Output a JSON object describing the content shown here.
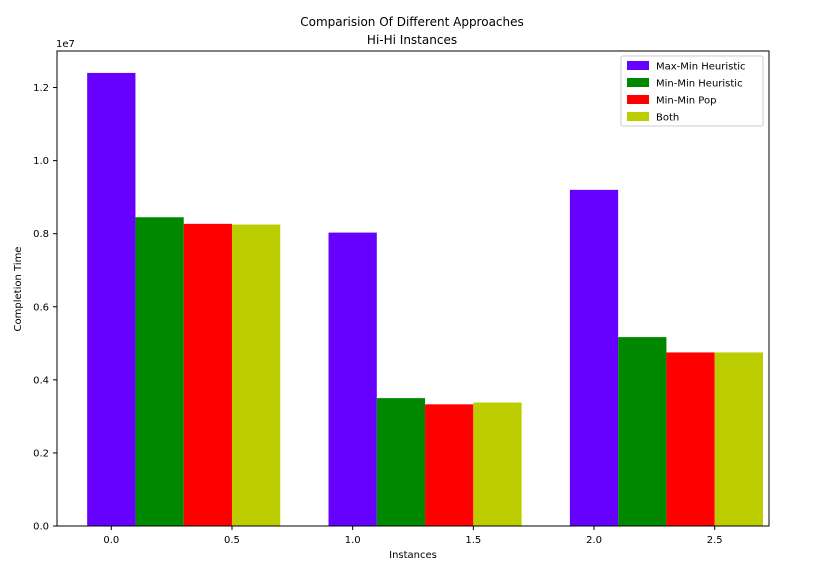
{
  "chart_data": {
    "type": "bar",
    "title": "Comparision Of Different Approaches",
    "subtitle": "Hi-Hi Instances",
    "xlabel": "Instances",
    "ylabel": "Completion Time",
    "y_offset_label": "1e7",
    "xlim": [
      -0.225,
      2.725
    ],
    "ylim": [
      0,
      13000000
    ],
    "x_ticks": [
      0.0,
      0.5,
      1.0,
      1.5,
      2.0,
      2.5
    ],
    "x_tick_labels": [
      "0.0",
      "0.5",
      "1.0",
      "1.5",
      "2.0",
      "2.5"
    ],
    "y_ticks": [
      0,
      2000000,
      4000000,
      6000000,
      8000000,
      10000000,
      12000000
    ],
    "y_tick_labels": [
      "0.0",
      "0.2",
      "0.4",
      "0.6",
      "0.8",
      "1.0",
      "1.2"
    ],
    "bar_width": 0.2,
    "grid": false,
    "legend_position": "top-right",
    "series": [
      {
        "name": "Max-Min Heuristic",
        "color": "#6600ff",
        "x": [
          0.0,
          1.0,
          2.0
        ],
        "values": [
          12400000,
          8030000,
          9200000
        ]
      },
      {
        "name": "Min-Min Heuristic",
        "color": "#008800",
        "x": [
          0.2,
          1.2,
          2.2
        ],
        "values": [
          8450000,
          3500000,
          5170000
        ]
      },
      {
        "name": "Min-Min Pop",
        "color": "#ff0000",
        "x": [
          0.4,
          1.4,
          2.4
        ],
        "values": [
          8270000,
          3330000,
          4750000
        ]
      },
      {
        "name": "Both",
        "color": "#bbcc00",
        "x": [
          0.6,
          1.6,
          2.6
        ],
        "values": [
          8250000,
          3380000,
          4750000
        ]
      }
    ]
  }
}
